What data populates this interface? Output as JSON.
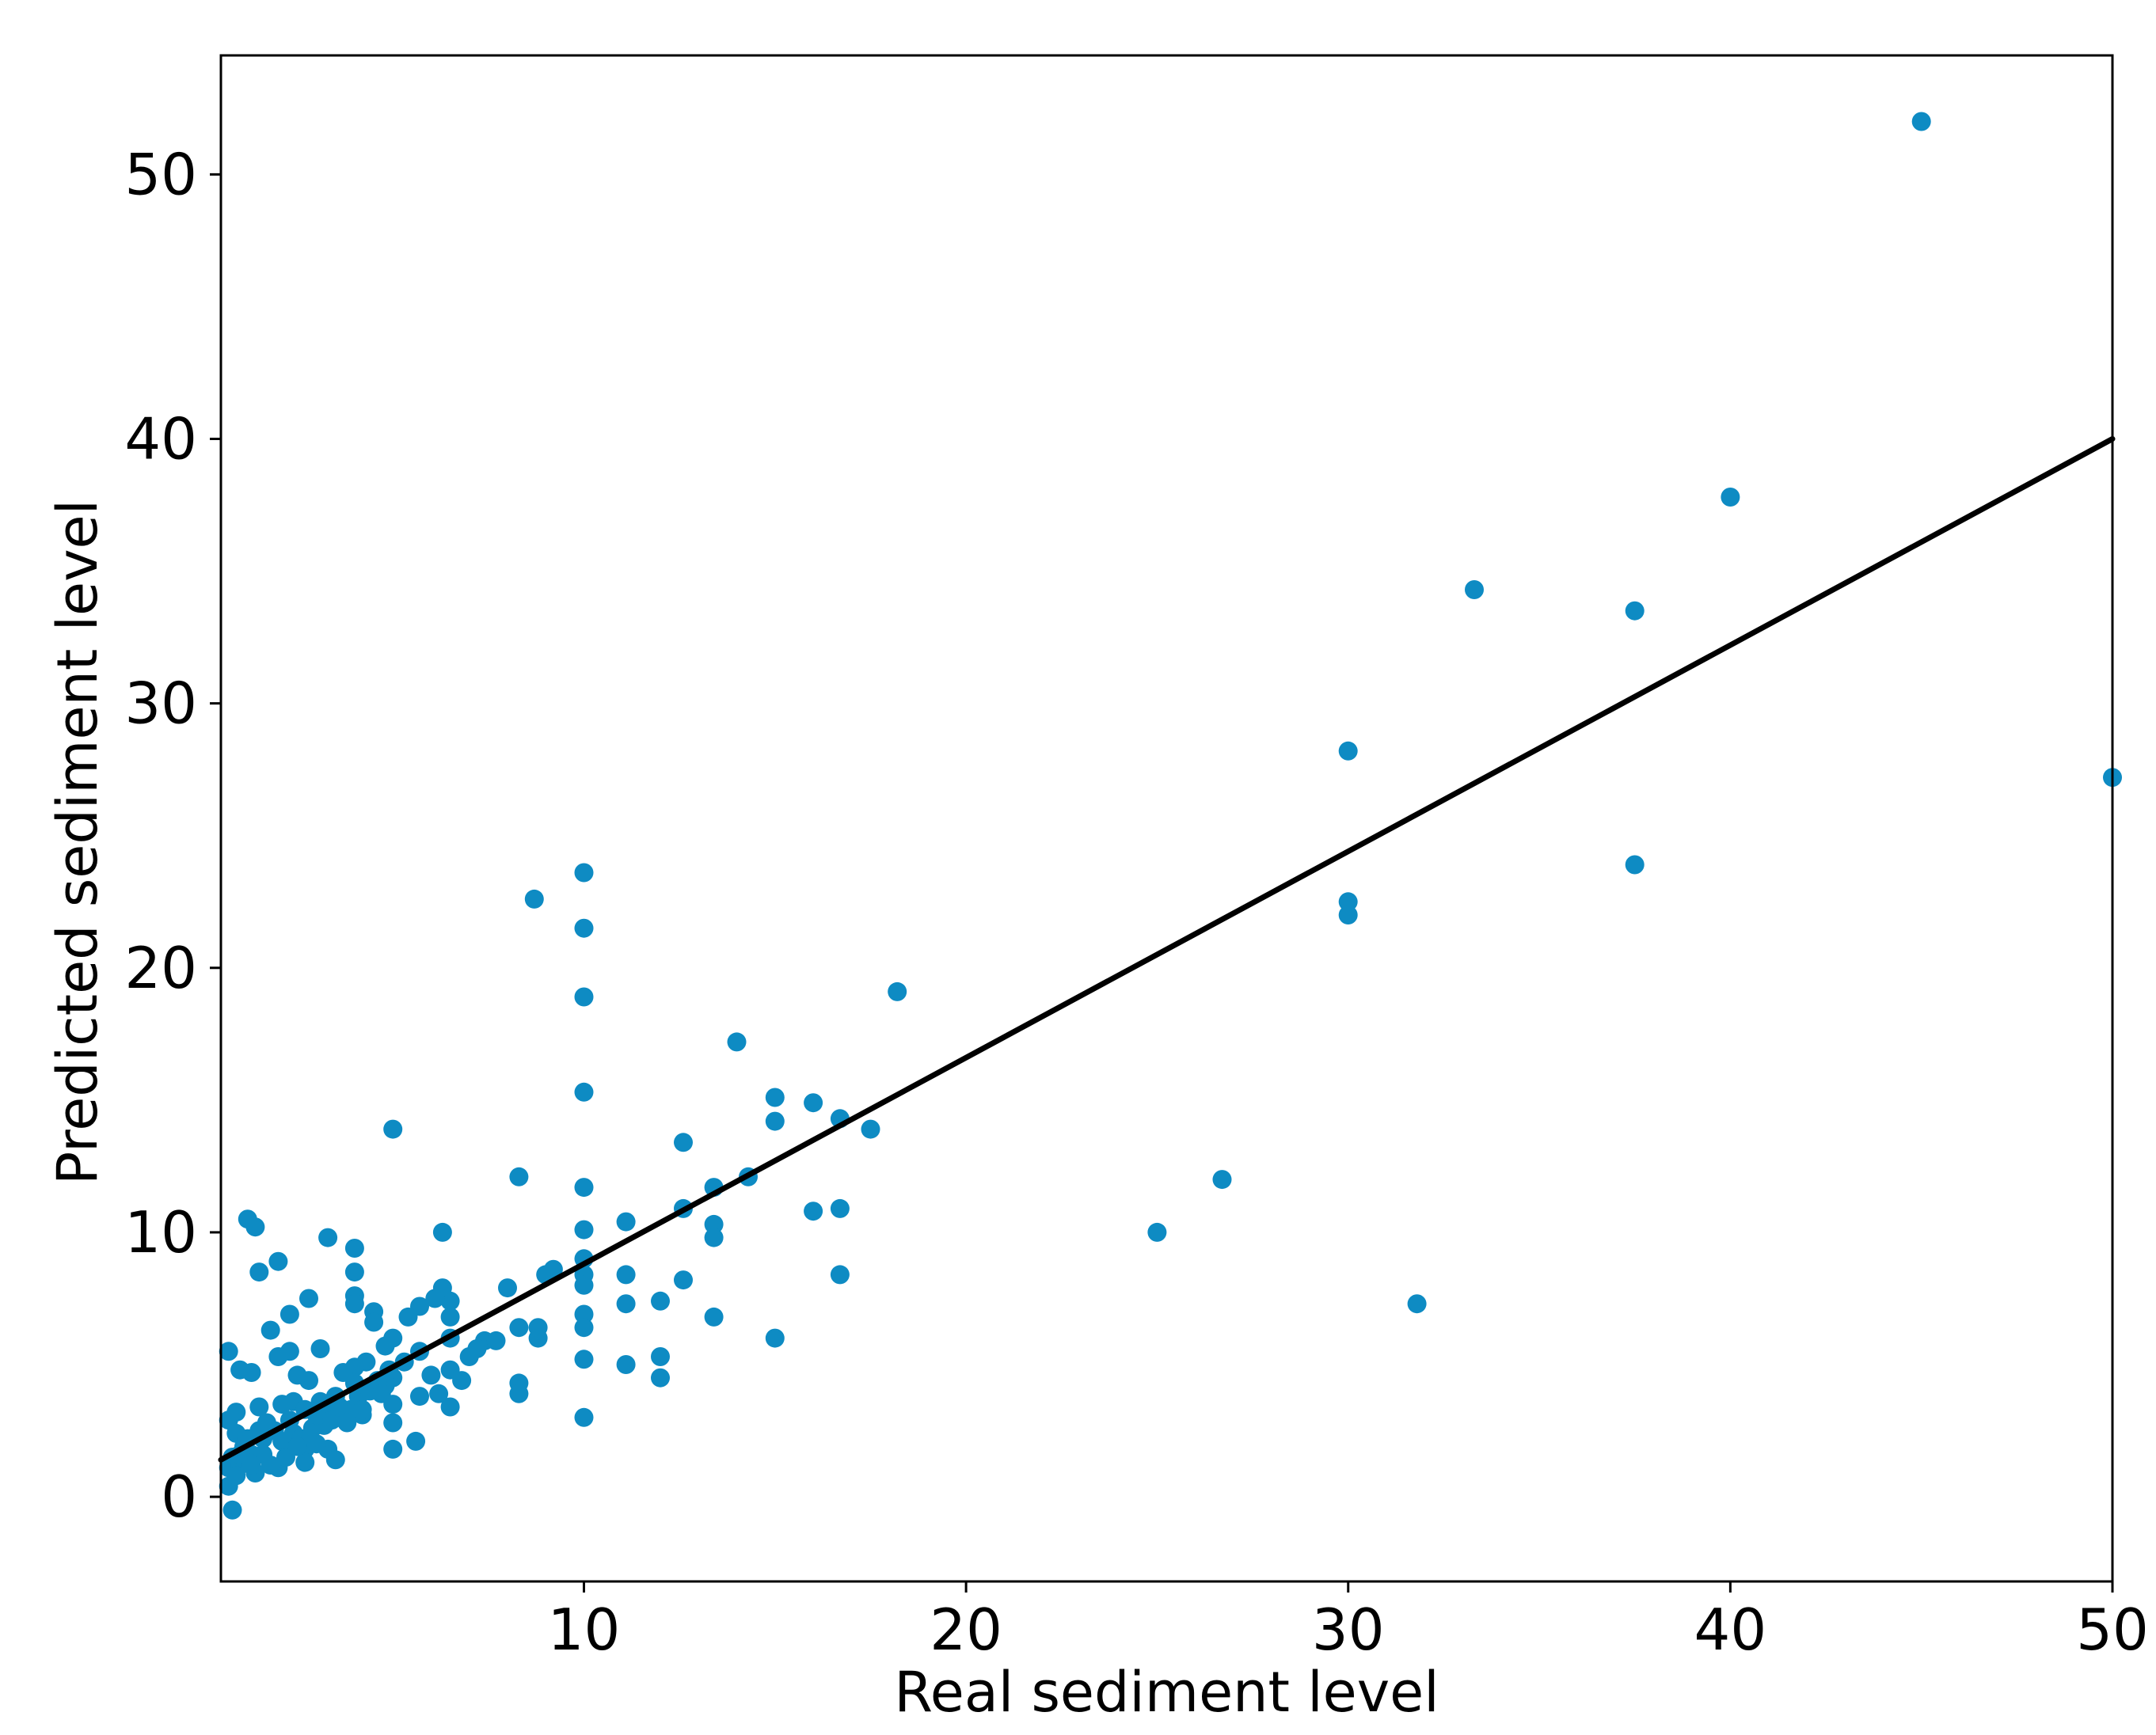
{
  "chart_data": {
    "type": "scatter",
    "title": "",
    "xlabel": "Real sediment level",
    "ylabel": "Predicted sediment level",
    "xlim": [
      0.5,
      50
    ],
    "ylim": [
      -3.2,
      54.5
    ],
    "x_ticks": [
      10,
      20,
      30,
      40,
      50
    ],
    "x_tick_labels": [
      "10",
      "20",
      "30",
      "40",
      "50"
    ],
    "y_ticks": [
      0,
      10,
      20,
      30,
      40,
      50
    ],
    "y_tick_labels": [
      "0",
      "10",
      "20",
      "30",
      "40",
      "50"
    ],
    "grid": false,
    "legend": "none",
    "colors": {
      "points": "#0e8bc3",
      "fit_line": "#000000",
      "axes": "#000000"
    },
    "fit_line": {
      "x": [
        0.5,
        50
      ],
      "y": [
        1.4,
        40.0
      ]
    },
    "series": [
      {
        "points": [
          [
            45.0,
            52.0
          ],
          [
            40.0,
            37.8
          ],
          [
            33.3,
            34.3
          ],
          [
            37.5,
            33.5
          ],
          [
            30.0,
            28.2
          ],
          [
            50.0,
            27.2
          ],
          [
            37.5,
            23.9
          ],
          [
            30.0,
            22.5
          ],
          [
            30.0,
            22.0
          ],
          [
            31.8,
            7.3
          ],
          [
            25.0,
            10.0
          ],
          [
            26.7,
            12.0
          ],
          [
            18.2,
            19.1
          ],
          [
            14.0,
            17.2
          ],
          [
            15.0,
            15.1
          ],
          [
            16.0,
            14.9
          ],
          [
            15.0,
            14.2
          ],
          [
            16.7,
            14.3
          ],
          [
            17.5,
            13.9
          ],
          [
            14.3,
            12.1
          ],
          [
            12.6,
            13.4
          ],
          [
            13.4,
            11.7
          ],
          [
            13.4,
            10.3
          ],
          [
            13.4,
            9.8
          ],
          [
            12.6,
            10.9
          ],
          [
            12.6,
            8.2
          ],
          [
            13.4,
            6.8
          ],
          [
            16.0,
            10.8
          ],
          [
            16.7,
            10.9
          ],
          [
            16.7,
            8.4
          ],
          [
            15.0,
            6.0
          ],
          [
            11.1,
            10.4
          ],
          [
            11.1,
            8.4
          ],
          [
            11.1,
            7.3
          ],
          [
            11.1,
            5.0
          ],
          [
            12.0,
            7.4
          ],
          [
            12.0,
            5.3
          ],
          [
            12.0,
            4.5
          ],
          [
            10.0,
            23.6
          ],
          [
            10.0,
            21.5
          ],
          [
            10.0,
            18.9
          ],
          [
            10.0,
            15.3
          ],
          [
            10.0,
            11.7
          ],
          [
            10.0,
            10.1
          ],
          [
            10.0,
            9.0
          ],
          [
            10.0,
            8.4
          ],
          [
            10.0,
            8.0
          ],
          [
            10.0,
            6.9
          ],
          [
            10.0,
            6.4
          ],
          [
            10.0,
            5.2
          ],
          [
            10.0,
            3.0
          ],
          [
            8.7,
            22.6
          ],
          [
            8.3,
            12.1
          ],
          [
            8.3,
            6.4
          ],
          [
            8.3,
            4.3
          ],
          [
            8.3,
            3.9
          ],
          [
            9.0,
            8.4
          ],
          [
            9.2,
            8.6
          ],
          [
            8.0,
            7.9
          ],
          [
            8.8,
            6.4
          ],
          [
            8.8,
            6.0
          ],
          [
            7.4,
            5.9
          ],
          [
            7.7,
            5.9
          ],
          [
            7.2,
            5.6
          ],
          [
            7.0,
            5.3
          ],
          [
            6.8,
            4.4
          ],
          [
            6.3,
            10.0
          ],
          [
            6.5,
            7.4
          ],
          [
            6.5,
            6.8
          ],
          [
            6.5,
            6.0
          ],
          [
            6.5,
            4.8
          ],
          [
            6.5,
            3.4
          ],
          [
            6.3,
            7.9
          ],
          [
            6.1,
            7.5
          ],
          [
            6.0,
            4.6
          ],
          [
            6.2,
            3.9
          ],
          [
            5.7,
            7.2
          ],
          [
            5.7,
            5.5
          ],
          [
            5.7,
            3.8
          ],
          [
            5.0,
            13.9
          ],
          [
            5.0,
            6.0
          ],
          [
            5.0,
            4.5
          ],
          [
            5.0,
            3.5
          ],
          [
            5.0,
            2.8
          ],
          [
            5.0,
            1.8
          ],
          [
            5.6,
            2.1
          ],
          [
            5.4,
            6.8
          ],
          [
            4.8,
            5.7
          ],
          [
            4.8,
            4.2
          ],
          [
            4.5,
            7.0
          ],
          [
            4.5,
            6.6
          ],
          [
            4.3,
            5.1
          ],
          [
            4.2,
            3.1
          ],
          [
            4.0,
            9.4
          ],
          [
            4.0,
            8.5
          ],
          [
            4.0,
            7.6
          ],
          [
            4.0,
            7.3
          ],
          [
            4.0,
            4.9
          ],
          [
            4.0,
            4.3
          ],
          [
            3.7,
            4.7
          ],
          [
            3.5,
            3.8
          ],
          [
            3.3,
            9.8
          ],
          [
            3.1,
            5.6
          ],
          [
            3.3,
            3.3
          ],
          [
            3.2,
            2.7
          ],
          [
            3.3,
            1.8
          ],
          [
            3.5,
            1.4
          ],
          [
            2.8,
            7.5
          ],
          [
            2.8,
            4.4
          ],
          [
            2.7,
            1.8
          ],
          [
            2.7,
            1.3
          ],
          [
            2.5,
            4.6
          ],
          [
            2.4,
            3.6
          ],
          [
            2.4,
            2.4
          ],
          [
            2.3,
            6.9
          ],
          [
            2.3,
            5.5
          ],
          [
            2.0,
            8.9
          ],
          [
            2.0,
            5.3
          ],
          [
            1.8,
            6.3
          ],
          [
            2.1,
            3.5
          ],
          [
            2.1,
            2.1
          ],
          [
            2.0,
            1.1
          ],
          [
            1.7,
            2.8
          ],
          [
            1.5,
            8.5
          ],
          [
            1.4,
            10.2
          ],
          [
            1.2,
            10.5
          ],
          [
            1.3,
            4.7
          ],
          [
            1.5,
            3.4
          ],
          [
            1.6,
            2.2
          ],
          [
            1.3,
            1.6
          ],
          [
            1.4,
            0.9
          ],
          [
            1.0,
            4.8
          ],
          [
            0.9,
            3.2
          ],
          [
            0.9,
            2.4
          ],
          [
            0.8,
            1.5
          ],
          [
            0.7,
            5.5
          ],
          [
            0.7,
            2.9
          ],
          [
            0.7,
            1.1
          ],
          [
            0.7,
            0.4
          ],
          [
            0.8,
            -0.5
          ],
          [
            1.0,
            1.2
          ],
          [
            1.1,
            1.9
          ],
          [
            1.6,
            1.6
          ],
          [
            1.8,
            1.2
          ],
          [
            2.2,
            1.5
          ],
          [
            2.6,
            2.2
          ],
          [
            2.9,
            2.6
          ],
          [
            3.0,
            3.1
          ],
          [
            3.4,
            2.9
          ],
          [
            3.6,
            3.4
          ],
          [
            3.9,
            3.3
          ],
          [
            4.1,
            3.8
          ],
          [
            4.4,
            4.0
          ],
          [
            4.6,
            4.4
          ],
          [
            4.9,
            4.8
          ],
          [
            5.3,
            5.1
          ],
          [
            1.9,
            2.5
          ],
          [
            2.3,
            2.9
          ],
          [
            2.7,
            3.3
          ],
          [
            3.1,
            3.6
          ],
          [
            1.5,
            2.5
          ],
          [
            1.2,
            2.2
          ],
          [
            1.0,
            1.6
          ],
          [
            0.9,
            0.8
          ],
          [
            1.3,
            1.2
          ],
          [
            2.5,
            1.9
          ],
          [
            3.8,
            2.8
          ],
          [
            4.2,
            3.3
          ],
          [
            4.7,
            3.9
          ],
          [
            3.0,
            2.0
          ]
        ]
      }
    ]
  }
}
